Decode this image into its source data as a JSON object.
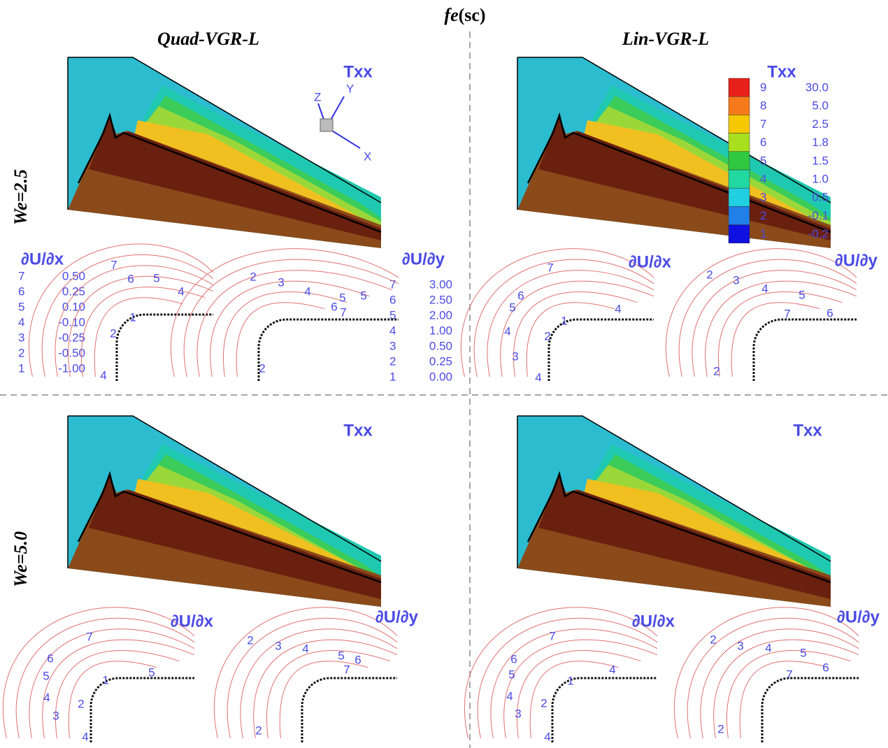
{
  "title": {
    "symbol": "fe",
    "suffix": "(sc)"
  },
  "columns": [
    "Quad-VGR-L",
    "Lin-VGR-L"
  ],
  "rows": [
    "We=2.5",
    "We=5.0"
  ],
  "panels": [
    {
      "field": "Txx",
      "dudx_title": "∂U/∂x",
      "dudy_title": "∂U/∂y",
      "dudx_labels": [
        7,
        6,
        5,
        4,
        1,
        2,
        4
      ],
      "dudy_labels": [
        2,
        3,
        4,
        5,
        5,
        6,
        7,
        2
      ]
    },
    {
      "field": "Txx",
      "dudx_title": "∂U/∂x",
      "dudy_title": "∂U/∂y",
      "dudx_labels": [
        7,
        6,
        5,
        4,
        1,
        2,
        4,
        3,
        4
      ],
      "dudy_labels": [
        2,
        3,
        4,
        5,
        7,
        6,
        2
      ]
    },
    {
      "field": "Txx",
      "dudx_title": "∂U/∂x",
      "dudy_title": "∂U/∂y",
      "dudx_labels": [
        7,
        6,
        5,
        1,
        5,
        4,
        2,
        3,
        4
      ],
      "dudy_labels": [
        2,
        3,
        4,
        5,
        6,
        7,
        2
      ]
    },
    {
      "field": "Txx",
      "dudx_title": "∂U/∂x",
      "dudy_title": "∂U/∂y",
      "dudx_labels": [
        7,
        6,
        5,
        4,
        1,
        4,
        2,
        3,
        4
      ],
      "dudy_labels": [
        2,
        3,
        4,
        5,
        6,
        7,
        2
      ]
    }
  ],
  "colorbar": {
    "levels": [
      9,
      8,
      7,
      6,
      5,
      4,
      3,
      2,
      1
    ],
    "values": [
      "30.0",
      "5.0",
      "2.5",
      "1.8",
      "1.5",
      "1.0",
      "0.5",
      "-0.1",
      "-0.2"
    ]
  },
  "dudx_legend": {
    "levels": [
      7,
      6,
      5,
      4,
      3,
      2,
      1
    ],
    "values": [
      "0.50",
      "0.25",
      "0.10",
      "-0.10",
      "-0.25",
      "-0.50",
      "-1.00"
    ]
  },
  "dudy_legend": {
    "levels": [
      7,
      6,
      5,
      4,
      3,
      2,
      1
    ],
    "values": [
      "3.00",
      "2.50",
      "2.00",
      "1.00",
      "0.50",
      "0.25",
      "0.00"
    ]
  },
  "triad": {
    "x": "X",
    "y": "Y",
    "z": "Z"
  }
}
